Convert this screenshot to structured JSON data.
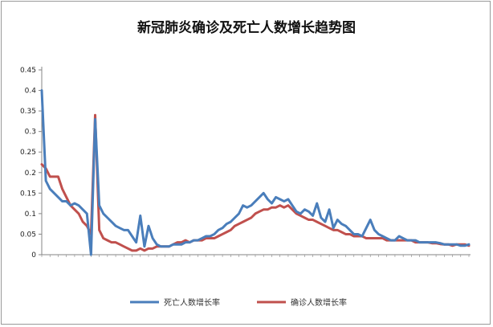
{
  "chart_data": {
    "type": "line",
    "title": "新冠肺炎确诊及死亡人数增长趋势图",
    "xlabel": "",
    "ylabel": "",
    "ylim": [
      0,
      0.45
    ],
    "yticks": [
      "0",
      "0.05",
      "0.1",
      "0.15",
      "0.2",
      "0.25",
      "0.3",
      "0.35",
      "0.4",
      "0.45"
    ],
    "grid": false,
    "legend_position": "bottom",
    "x_labels_legible": false,
    "series": [
      {
        "name": "死亡人数增长率",
        "color": "#4a7ebb",
        "values": [
          0.4,
          0.18,
          0.16,
          0.15,
          0.14,
          0.13,
          0.13,
          0.12,
          0.125,
          0.12,
          0.11,
          0.1,
          0.0,
          0.33,
          0.12,
          0.1,
          0.09,
          0.08,
          0.07,
          0.065,
          0.06,
          0.06,
          0.045,
          0.03,
          0.095,
          0.02,
          0.07,
          0.04,
          0.025,
          0.02,
          0.02,
          0.02,
          0.025,
          0.025,
          0.025,
          0.03,
          0.03,
          0.035,
          0.035,
          0.04,
          0.045,
          0.045,
          0.05,
          0.06,
          0.065,
          0.075,
          0.08,
          0.09,
          0.1,
          0.12,
          0.115,
          0.12,
          0.13,
          0.14,
          0.15,
          0.135,
          0.125,
          0.14,
          0.135,
          0.13,
          0.135,
          0.12,
          0.105,
          0.1,
          0.11,
          0.105,
          0.095,
          0.125,
          0.09,
          0.08,
          0.11,
          0.065,
          0.085,
          0.075,
          0.07,
          0.06,
          0.05,
          0.05,
          0.045,
          0.065,
          0.085,
          0.06,
          0.05,
          0.045,
          0.04,
          0.035,
          0.035,
          0.045,
          0.04,
          0.035,
          0.035,
          0.035,
          0.03,
          0.03,
          0.03,
          0.03,
          0.03,
          0.028,
          0.025,
          0.025,
          0.025,
          0.025,
          0.022,
          0.022,
          0.025
        ]
      },
      {
        "name": "确诊人数增长率",
        "color": "#c0504d",
        "values": [
          0.22,
          0.21,
          0.19,
          0.19,
          0.19,
          0.16,
          0.14,
          0.12,
          0.11,
          0.1,
          0.08,
          0.07,
          0.05,
          0.34,
          0.06,
          0.04,
          0.035,
          0.03,
          0.03,
          0.025,
          0.02,
          0.015,
          0.01,
          0.01,
          0.015,
          0.01,
          0.015,
          0.015,
          0.02,
          0.02,
          0.02,
          0.02,
          0.025,
          0.03,
          0.03,
          0.035,
          0.03,
          0.035,
          0.035,
          0.035,
          0.04,
          0.04,
          0.04,
          0.045,
          0.05,
          0.055,
          0.06,
          0.07,
          0.075,
          0.08,
          0.085,
          0.09,
          0.1,
          0.105,
          0.11,
          0.11,
          0.115,
          0.115,
          0.12,
          0.115,
          0.12,
          0.11,
          0.1,
          0.095,
          0.09,
          0.085,
          0.085,
          0.08,
          0.075,
          0.07,
          0.065,
          0.06,
          0.06,
          0.055,
          0.05,
          0.05,
          0.045,
          0.045,
          0.045,
          0.04,
          0.04,
          0.04,
          0.04,
          0.04,
          0.035,
          0.035,
          0.035,
          0.035,
          0.035,
          0.035,
          0.035,
          0.03,
          0.03,
          0.03,
          0.03,
          0.028,
          0.028,
          0.026,
          0.025,
          0.025,
          0.022,
          0.025,
          0.025,
          0.025,
          0.022
        ]
      }
    ]
  }
}
